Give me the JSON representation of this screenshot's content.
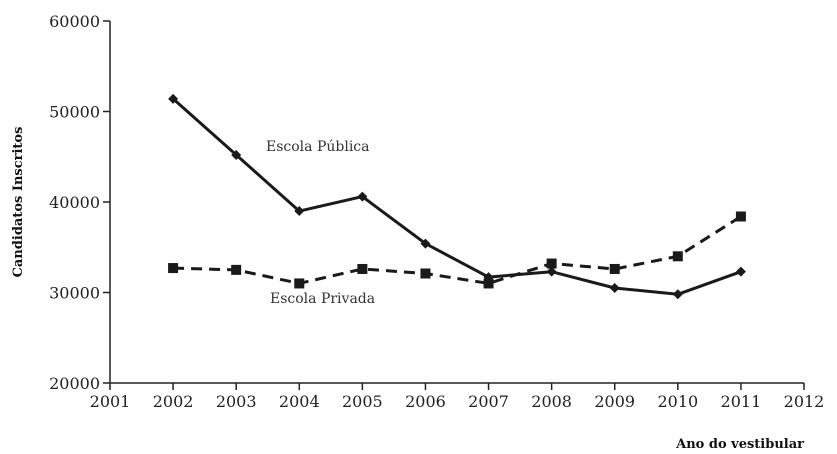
{
  "chart_data": {
    "type": "line",
    "title": "",
    "xlabel": "Ano do vestibular",
    "ylabel": "Candidatos Inscritos",
    "xlim": [
      2001,
      2012
    ],
    "ylim": [
      20000,
      60000
    ],
    "x_ticks": [
      "2001",
      "2002",
      "2003",
      "2004",
      "2005",
      "2006",
      "2007",
      "2008",
      "2009",
      "2010",
      "2011",
      "2012"
    ],
    "y_ticks": [
      "20000",
      "30000",
      "40000",
      "50000",
      "60000"
    ],
    "grid": false,
    "legend": "none",
    "series": [
      {
        "name": "Escola Pública",
        "style": "solid",
        "marker": "diamond",
        "color": "#1a1a1a",
        "x": [
          2002,
          2003,
          2004,
          2005,
          2006,
          2007,
          2008,
          2009,
          2010,
          2011
        ],
        "values": [
          51400,
          45200,
          39000,
          40600,
          35400,
          31700,
          32300,
          30500,
          29800,
          32300
        ]
      },
      {
        "name": "Escola Privada",
        "style": "dashed",
        "marker": "square",
        "color": "#1a1a1a",
        "x": [
          2002,
          2003,
          2004,
          2005,
          2006,
          2007,
          2008,
          2009,
          2010,
          2011
        ],
        "values": [
          32700,
          32500,
          31000,
          32600,
          32100,
          31000,
          33200,
          32600,
          34000,
          38400
        ]
      }
    ]
  }
}
